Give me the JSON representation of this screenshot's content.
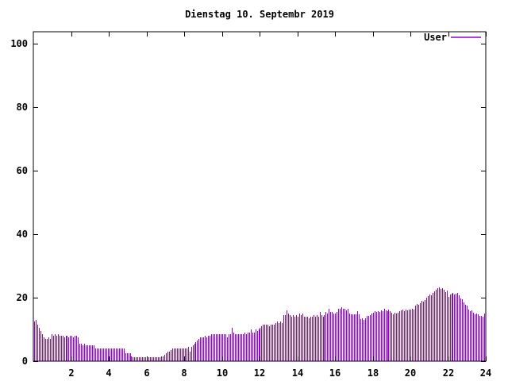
{
  "title": "Dienstag 10. Septembr 2019",
  "legend": {
    "label": "User",
    "color": "#9400d3"
  },
  "colors": {
    "bars": "#9400d3",
    "axis": "#000000",
    "text": "#000000",
    "background": "#ffffff"
  },
  "chart_data": {
    "type": "bar",
    "title": "Dienstag 10. Septembr 2019",
    "xlabel": "",
    "ylabel": "",
    "x_range": [
      0,
      24
    ],
    "y_range": [
      0,
      103.75
    ],
    "x_ticks": [
      2,
      4,
      6,
      8,
      10,
      12,
      14,
      16,
      18,
      20,
      22,
      24
    ],
    "y_ticks": [
      0,
      20,
      40,
      60,
      80,
      100
    ],
    "grid": false,
    "legend_position": "top-right",
    "series": [
      {
        "name": "User",
        "color": "#9400d3",
        "interval_minutes": 5,
        "values": [
          12.5,
          13,
          11.5,
          10.5,
          9.5,
          8.5,
          7.5,
          7,
          7,
          7.5,
          7,
          8.5,
          8,
          8.5,
          8,
          8.5,
          8,
          8,
          8,
          7.5,
          8,
          8,
          7.5,
          8,
          8,
          7.5,
          8,
          8,
          7.5,
          5.5,
          5.5,
          5,
          5.5,
          5,
          5,
          5,
          5,
          5,
          5,
          4,
          4,
          4,
          4,
          4,
          4,
          4,
          4,
          4,
          4,
          4,
          4,
          4,
          4,
          4,
          4,
          4,
          4,
          4,
          2.5,
          2.5,
          2.5,
          2.5,
          1.5,
          1.2,
          1.2,
          1.2,
          1.2,
          1.2,
          1.2,
          1.2,
          1.2,
          1.2,
          1.2,
          1.2,
          1.2,
          1.2,
          1.2,
          1.2,
          1.2,
          1.2,
          1.2,
          1.5,
          1.5,
          2,
          2.5,
          3,
          3,
          3.5,
          4,
          4,
          4,
          4,
          4,
          4,
          4,
          4,
          4,
          4,
          4.5,
          3,
          4.5,
          5,
          5.5,
          6,
          6.5,
          7,
          7.5,
          7.5,
          7.5,
          8,
          7.5,
          8,
          8,
          8.5,
          8.5,
          8.5,
          8.5,
          8.5,
          8.5,
          8.5,
          8.5,
          8.5,
          8.5,
          7.5,
          8.5,
          8.5,
          10.5,
          9,
          8.5,
          8.5,
          8.5,
          8.5,
          8.5,
          8.5,
          9,
          8.5,
          9,
          9,
          10,
          9,
          9,
          10,
          9.5,
          10,
          10.5,
          11,
          11.5,
          11.5,
          11.5,
          11.5,
          11,
          11.5,
          11.5,
          11.5,
          12,
          12.5,
          12,
          12.5,
          12,
          14.5,
          14.5,
          16,
          15,
          14.5,
          14,
          14.5,
          14,
          14.5,
          14,
          15,
          14.5,
          15,
          14,
          14,
          14,
          13.5,
          14,
          14,
          14.5,
          14,
          14.5,
          14,
          15.5,
          14.5,
          14,
          14.5,
          15.5,
          15,
          16.5,
          15.5,
          15.5,
          15,
          15,
          15.5,
          16.5,
          16.5,
          17,
          16.5,
          16.5,
          16,
          16.5,
          15,
          14.8,
          14.8,
          14.8,
          14.8,
          15.8,
          14.8,
          13.2,
          13.5,
          13,
          13.5,
          14.3,
          14.3,
          14.5,
          15,
          15.3,
          15.8,
          15.5,
          15.8,
          15.5,
          16,
          15.8,
          16.5,
          16,
          15.8,
          16.3,
          15.8,
          15.3,
          14.8,
          15.3,
          15,
          15.3,
          15.8,
          16,
          16.3,
          15.8,
          16.3,
          16,
          16.3,
          16.3,
          16.5,
          16.3,
          17.5,
          18,
          17.8,
          18.3,
          19,
          18.8,
          19.3,
          20,
          20.5,
          21,
          20.8,
          21.5,
          22,
          22.5,
          23,
          23.2,
          22.8,
          23,
          22.5,
          21.8,
          22.3,
          20.3,
          21,
          21.3,
          21.5,
          21,
          21.3,
          21.5,
          20.8,
          19.8,
          19.5,
          18.5,
          17.8,
          17.5,
          16.3,
          15.8,
          16,
          15.3,
          14.8,
          15,
          14.8,
          14.3,
          14.3,
          14,
          15
        ]
      }
    ]
  }
}
